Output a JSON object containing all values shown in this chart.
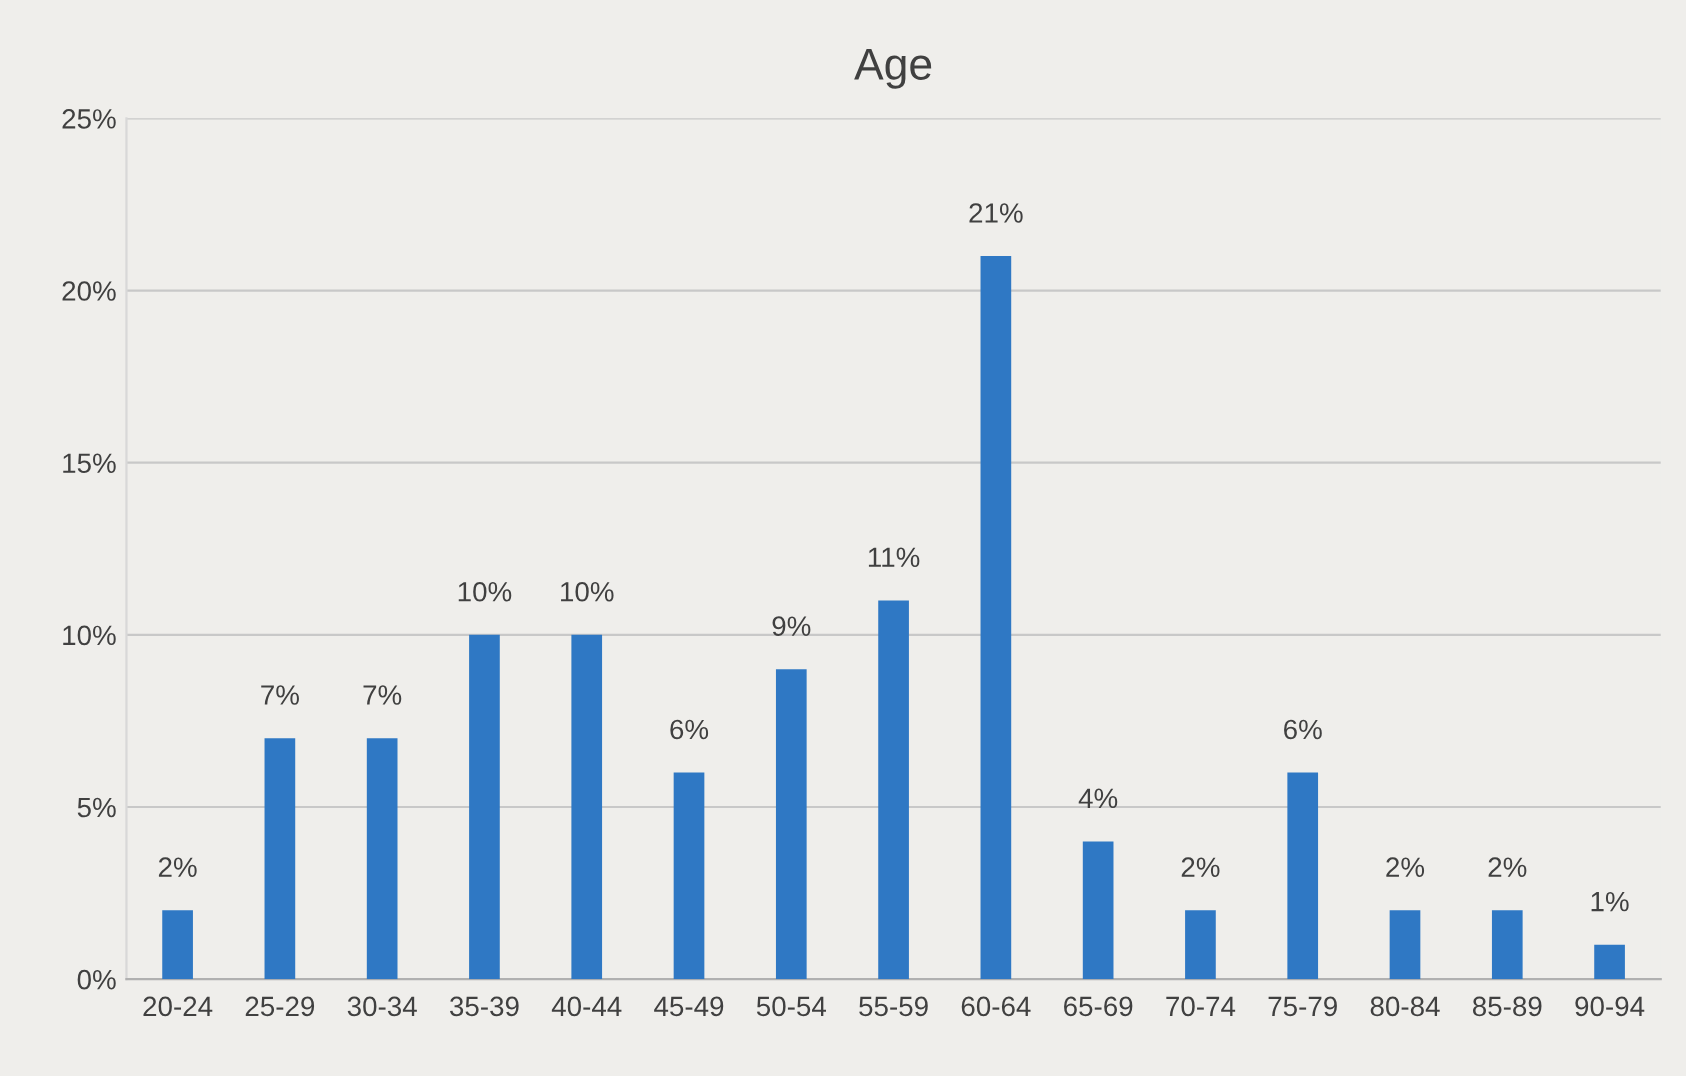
{
  "chart_data": {
    "type": "bar",
    "title": "Age",
    "categories": [
      "20-24",
      "25-29",
      "30-34",
      "35-39",
      "40-44",
      "45-49",
      "50-54",
      "55-59",
      "60-64",
      "65-69",
      "70-74",
      "75-79",
      "80-84",
      "85-89",
      "90-94"
    ],
    "values": [
      2,
      7,
      7,
      10,
      10,
      6,
      9,
      11,
      21,
      4,
      2,
      6,
      2,
      2,
      1
    ],
    "value_labels": [
      "2%",
      "7%",
      "7%",
      "10%",
      "10%",
      "6%",
      "9%",
      "11%",
      "21%",
      "4%",
      "2%",
      "6%",
      "2%",
      "2%",
      "1%"
    ],
    "color": "#2f78c4",
    "ylim": [
      0,
      25
    ],
    "yticks": [
      {
        "value": 0,
        "label": "0%"
      },
      {
        "value": 5,
        "label": "5%"
      },
      {
        "value": 10,
        "label": "10%"
      },
      {
        "value": 15,
        "label": "15%"
      },
      {
        "value": 20,
        "label": "20%"
      },
      {
        "value": 25,
        "label": "25%"
      }
    ],
    "grid": "y",
    "legend": false
  }
}
